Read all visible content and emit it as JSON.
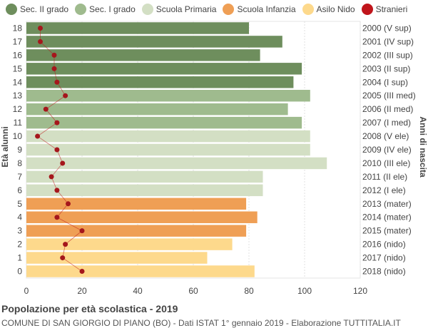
{
  "chart_data": {
    "type": "bar",
    "orientation": "horizontal",
    "title": "Popolazione per età scolastica - 2019",
    "subtitle": "COMUNE DI SAN GIORGIO DI PIANO (BO) - Dati ISTAT 1° gennaio 2019 - Elaborazione TUTTITALIA.IT",
    "ylabel_left": "Età alunni",
    "ylabel_right": "Anni di nascita",
    "xlim": [
      0,
      120
    ],
    "xticks": [
      "0",
      "20",
      "40",
      "60",
      "80",
      "100",
      "120"
    ],
    "legend_position": "top",
    "legend": [
      {
        "name": "Sec. II grado",
        "color": "#6e8e5d"
      },
      {
        "name": "Sec. I grado",
        "color": "#9fbb8e"
      },
      {
        "name": "Scuola Primaria",
        "color": "#d3dfc4"
      },
      {
        "name": "Scuola Infanzia",
        "color": "#ef9f55"
      },
      {
        "name": "Asilo Nido",
        "color": "#fdd98c"
      },
      {
        "name": "Stranieri",
        "color": "#c0151b"
      }
    ],
    "rows": [
      {
        "age": "18",
        "birth": "2000 (V sup)",
        "value": 80,
        "stranieri": 5,
        "group": 0
      },
      {
        "age": "17",
        "birth": "2001 (IV sup)",
        "value": 92,
        "stranieri": 5,
        "group": 0
      },
      {
        "age": "16",
        "birth": "2002 (III sup)",
        "value": 84,
        "stranieri": 10,
        "group": 0
      },
      {
        "age": "15",
        "birth": "2003 (II sup)",
        "value": 99,
        "stranieri": 10,
        "group": 0
      },
      {
        "age": "14",
        "birth": "2004 (I sup)",
        "value": 96,
        "stranieri": 11,
        "group": 0
      },
      {
        "age": "13",
        "birth": "2005 (III med)",
        "value": 102,
        "stranieri": 14,
        "group": 1
      },
      {
        "age": "12",
        "birth": "2006 (II med)",
        "value": 94,
        "stranieri": 7,
        "group": 1
      },
      {
        "age": "11",
        "birth": "2007 (I med)",
        "value": 99,
        "stranieri": 11,
        "group": 1
      },
      {
        "age": "10",
        "birth": "2008 (V ele)",
        "value": 102,
        "stranieri": 4,
        "group": 2
      },
      {
        "age": "9",
        "birth": "2009 (IV ele)",
        "value": 102,
        "stranieri": 11,
        "group": 2
      },
      {
        "age": "8",
        "birth": "2010 (III ele)",
        "value": 108,
        "stranieri": 13,
        "group": 2
      },
      {
        "age": "7",
        "birth": "2011 (II ele)",
        "value": 85,
        "stranieri": 9,
        "group": 2
      },
      {
        "age": "6",
        "birth": "2012 (I ele)",
        "value": 85,
        "stranieri": 11,
        "group": 2
      },
      {
        "age": "5",
        "birth": "2013 (mater)",
        "value": 79,
        "stranieri": 15,
        "group": 3
      },
      {
        "age": "4",
        "birth": "2014 (mater)",
        "value": 83,
        "stranieri": 11,
        "group": 3
      },
      {
        "age": "3",
        "birth": "2015 (mater)",
        "value": 79,
        "stranieri": 20,
        "group": 3
      },
      {
        "age": "2",
        "birth": "2016 (nido)",
        "value": 74,
        "stranieri": 14,
        "group": 4
      },
      {
        "age": "1",
        "birth": "2017 (nido)",
        "value": 65,
        "stranieri": 13,
        "group": 4
      },
      {
        "age": "0",
        "birth": "2018 (nido)",
        "value": 82,
        "stranieri": 20,
        "group": 4
      }
    ]
  }
}
